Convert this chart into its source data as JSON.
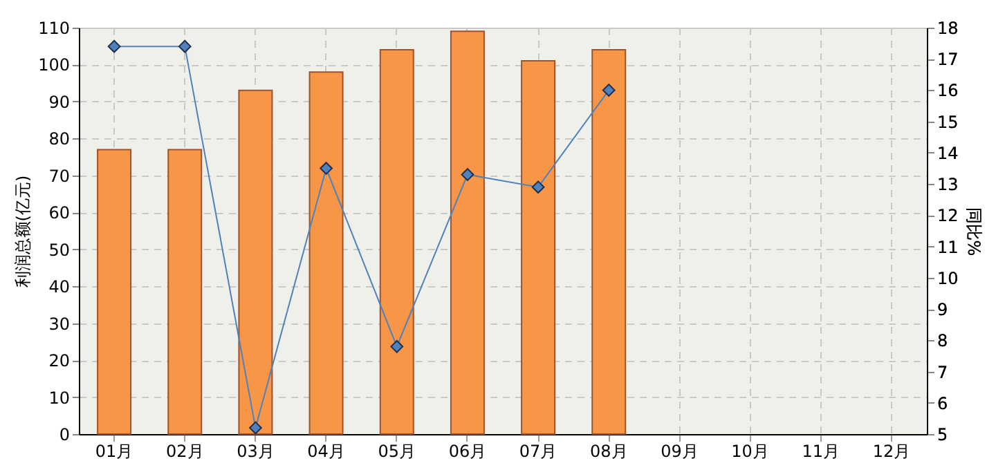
{
  "chart_data": {
    "type": "bar",
    "ylabel": "利润总额(亿元)",
    "y2label": "同比%",
    "categories": [
      "01月",
      "02月",
      "03月",
      "04月",
      "05月",
      "06月",
      "07月",
      "08月",
      "09月",
      "10月",
      "11月",
      "12月"
    ],
    "series": [
      {
        "color": "#f79646",
        "values": [
          77,
          77,
          93,
          98,
          104,
          109,
          101,
          104,
          null,
          null,
          null,
          null
        ]
      },
      {
        "type": "line",
        "axis": "y2",
        "color": "#4f81bd",
        "marker": "diamond",
        "values": [
          17.4,
          17.4,
          5.2,
          13.5,
          7.8,
          13.3,
          12.9,
          16.0,
          null,
          null,
          null,
          null
        ]
      }
    ],
    "ylim": [
      0,
      110
    ],
    "yticks": [
      0,
      10,
      20,
      30,
      40,
      50,
      60,
      70,
      80,
      90,
      100,
      110
    ],
    "y2lim": [
      5,
      18
    ],
    "y2ticks": [
      5,
      6,
      7,
      8,
      9,
      10,
      11,
      12,
      13,
      14,
      15,
      16,
      17,
      18
    ],
    "grid": true
  }
}
